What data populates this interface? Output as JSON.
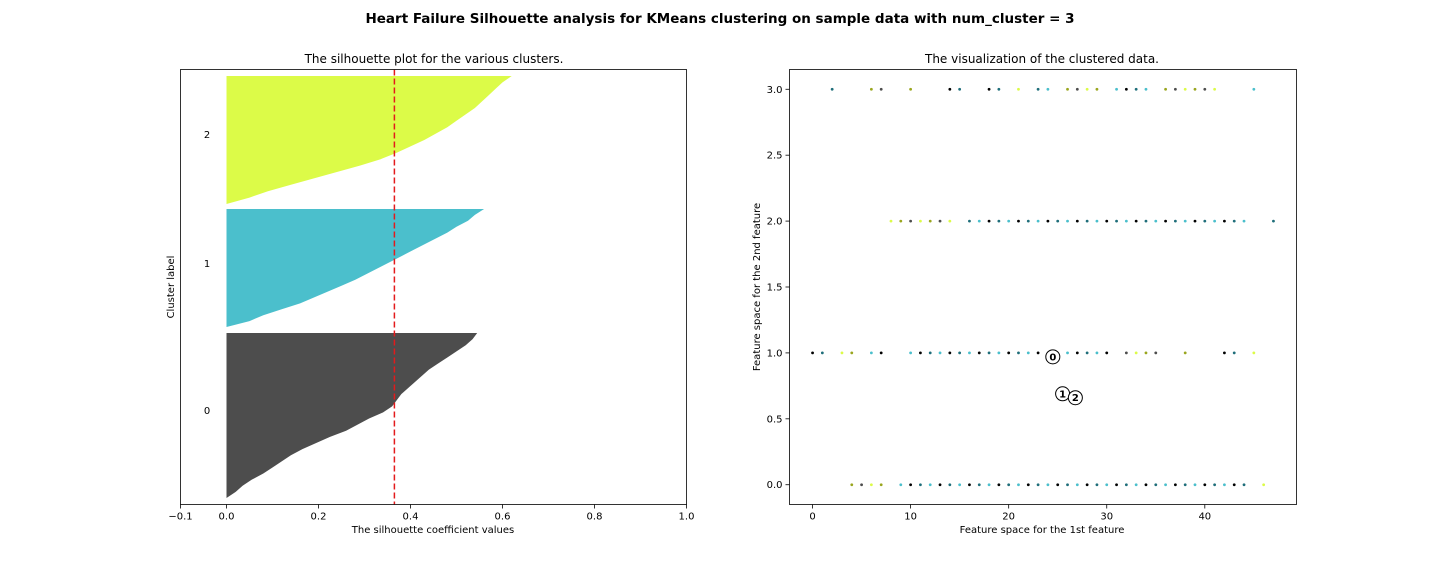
{
  "suptitle": "Heart Failure Silhouette analysis for KMeans clustering on sample data with num_cluster = 3",
  "chart_data": [
    {
      "type": "area",
      "title": "The silhouette plot for the various clusters.",
      "xlabel": "The silhouette coefficient values",
      "ylabel": "Cluster label",
      "xlim": [
        -0.1,
        1.0
      ],
      "xticks": [
        "−0.1",
        "0.0",
        "0.2",
        "0.4",
        "0.6",
        "0.8",
        "1.0"
      ],
      "xtick_values": [
        -0.1,
        0.0,
        0.2,
        0.4,
        0.6,
        0.8,
        1.0
      ],
      "yticks": "none",
      "average_silhouette_score": 0.365,
      "average_line_color": "#e31a1c",
      "clusters": [
        {
          "label": "0",
          "color": "#4d4d4d",
          "silhouette_profile": [
            0.545,
            0.535,
            0.52,
            0.5,
            0.48,
            0.46,
            0.44,
            0.425,
            0.41,
            0.395,
            0.38,
            0.37,
            0.36,
            0.34,
            0.31,
            0.285,
            0.26,
            0.225,
            0.195,
            0.165,
            0.14,
            0.12,
            0.1,
            0.08,
            0.055,
            0.035,
            0.02,
            0.0
          ]
        },
        {
          "label": "1",
          "color": "#4bbfcc",
          "silhouette_profile": [
            0.56,
            0.54,
            0.525,
            0.5,
            0.48,
            0.455,
            0.43,
            0.405,
            0.38,
            0.355,
            0.33,
            0.305,
            0.28,
            0.25,
            0.22,
            0.19,
            0.16,
            0.12,
            0.08,
            0.05,
            0.0
          ]
        },
        {
          "label": "2",
          "color": "#dcfb48",
          "silhouette_profile": [
            0.62,
            0.6,
            0.585,
            0.57,
            0.555,
            0.54,
            0.52,
            0.5,
            0.48,
            0.455,
            0.43,
            0.4,
            0.37,
            0.335,
            0.29,
            0.24,
            0.19,
            0.14,
            0.09,
            0.05,
            0.0
          ]
        }
      ]
    },
    {
      "type": "scatter",
      "title": "The visualization of the clustered data.",
      "xlabel": "Feature space for the 1st feature",
      "ylabel": "Feature space for the 2nd feature",
      "xlim": [
        -2.35,
        49.35
      ],
      "ylim": [
        -0.15,
        3.15
      ],
      "xticks": [
        0,
        10,
        20,
        30,
        40
      ],
      "yticks": [
        "0.0",
        "0.5",
        "1.0",
        "1.5",
        "2.0",
        "2.5",
        "3.0"
      ],
      "ytick_values": [
        0.0,
        0.5,
        1.0,
        1.5,
        2.0,
        2.5,
        3.0
      ],
      "palette": [
        "#4d4d4d",
        "#4bbfcc",
        "#dcfb48",
        "#000000",
        "#9aa61f",
        "#1f6e7a"
      ],
      "points": {
        "y0": [
          4,
          5,
          6,
          7,
          9,
          10,
          11,
          12,
          13,
          14,
          15,
          16,
          17,
          18,
          19,
          20,
          21,
          22,
          23,
          24,
          25,
          26,
          27,
          28,
          29,
          30,
          31,
          32,
          33,
          34,
          35,
          36,
          37,
          38,
          39,
          40,
          41,
          42,
          43,
          44,
          46
        ],
        "y1": [
          0,
          1,
          3,
          4,
          6,
          7,
          10,
          11,
          12,
          13,
          14,
          15,
          16,
          17,
          18,
          19,
          20,
          21,
          22,
          23,
          26,
          27,
          28,
          29,
          30,
          32,
          33,
          34,
          35,
          38,
          42,
          43,
          45
        ],
        "y2": [
          8,
          9,
          10,
          11,
          12,
          13,
          14,
          16,
          17,
          18,
          19,
          20,
          21,
          22,
          23,
          24,
          25,
          26,
          27,
          28,
          29,
          30,
          31,
          32,
          33,
          34,
          35,
          36,
          37,
          38,
          39,
          40,
          41,
          42,
          43,
          44,
          47
        ],
        "y3": [
          2,
          6,
          7,
          10,
          14,
          15,
          18,
          19,
          21,
          23,
          24,
          26,
          27,
          28,
          29,
          31,
          32,
          33,
          34,
          36,
          37,
          38,
          39,
          40,
          41,
          45
        ]
      },
      "centers": [
        {
          "label": "0",
          "x": 24.5,
          "y": 0.97
        },
        {
          "label": "1",
          "x": 25.5,
          "y": 0.69
        },
        {
          "label": "2",
          "x": 26.8,
          "y": 0.66
        }
      ]
    }
  ]
}
